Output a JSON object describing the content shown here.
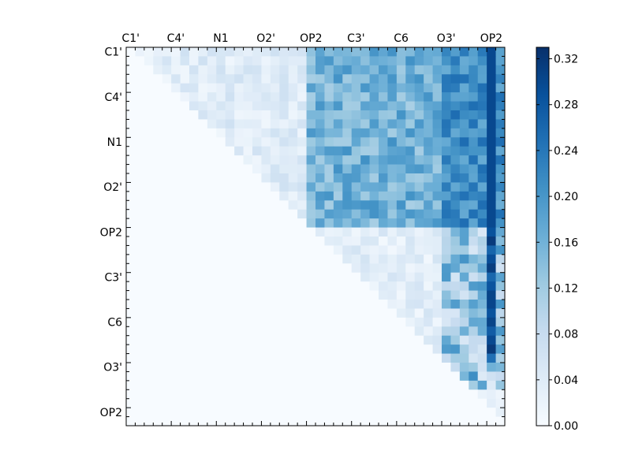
{
  "chart_data": {
    "type": "heatmap",
    "title": "",
    "xlabel": "",
    "ylabel": "",
    "n": 42,
    "x_tick_labels": [
      "C1'",
      "C4'",
      "N1",
      "O2'",
      "OP2",
      "C3'",
      "C6",
      "O3'",
      "OP2"
    ],
    "y_tick_labels": [
      "C1'",
      "C4'",
      "N1",
      "O2'",
      "OP2",
      "C3'",
      "C6",
      "O3'",
      "OP2"
    ],
    "colorbar": {
      "vmin": 0.0,
      "vmax": 0.33,
      "ticks": [
        "0.00",
        "0.04",
        "0.08",
        "0.12",
        "0.16",
        "0.20",
        "0.24",
        "0.28",
        "0.32"
      ],
      "colormap": "Blues"
    },
    "block_boundaries": [
      20,
      35
    ],
    "levels": {
      "intra_block1": 0.04,
      "intra_block2": 0.04,
      "block1_to_block2": 0.16,
      "block1_to_block3_col40": 0.3,
      "block1_to_block3_other": 0.22,
      "block2_to_block3": 0.16,
      "block2_col40": 0.31,
      "intra_block3": 0.12
    },
    "grid": false,
    "legend": "none"
  },
  "colors": {
    "cmap_low": "#f7fbff",
    "cmap_high": "#08306b",
    "axis": "#000000"
  }
}
